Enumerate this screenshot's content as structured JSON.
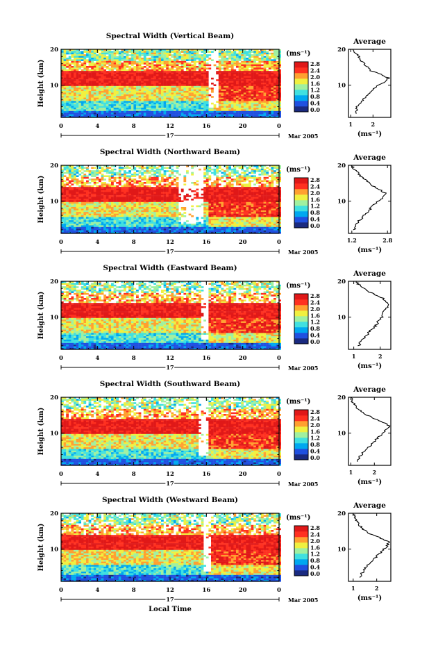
{
  "figure": {
    "xlabel": "Local Time",
    "date_label": "Mar 2005",
    "day_label": "17",
    "ylabel": "Height (km)",
    "unit_label": "(ms⁻¹)",
    "avg_title": "Average",
    "avg_xlabel": "(ms⁻¹)"
  },
  "colorbar": {
    "ticks": [
      "2.8",
      "2.4",
      "2.0",
      "1.6",
      "1.2",
      "0.8",
      "0.4",
      "0.0"
    ],
    "range": [
      0.0,
      3.0
    ],
    "colors": [
      "#1a2a80",
      "#2050e0",
      "#00a8f0",
      "#40e0e0",
      "#a0f0a0",
      "#f0f040",
      "#ffa030",
      "#ff3020",
      "#e01818"
    ]
  },
  "chart_data": [
    {
      "type": "heatmap",
      "title": "Spectral Width (Vertical Beam)",
      "x_ticks": [
        "0",
        "4",
        "8",
        "12",
        "16",
        "20",
        "0"
      ],
      "xlim": [
        0,
        24
      ],
      "y_ticks": [
        "20",
        "10"
      ],
      "ylim": [
        1,
        20
      ],
      "data_gaps_hours": [
        16,
        17.2
      ],
      "average": {
        "type": "line",
        "x_ticks": [
          "1",
          "2"
        ],
        "xlim": [
          0.9,
          2.8
        ],
        "height": [
          2,
          3,
          4,
          5,
          6,
          7,
          8,
          9,
          10,
          11,
          12,
          13,
          14,
          15,
          16,
          17,
          18,
          19,
          20
        ],
        "width": [
          1.3,
          1.25,
          1.3,
          1.45,
          1.55,
          1.7,
          1.85,
          2.05,
          2.25,
          2.55,
          2.7,
          2.35,
          1.9,
          1.75,
          1.6,
          1.45,
          1.35,
          1.2,
          1.1
        ]
      }
    },
    {
      "type": "heatmap",
      "title": "Spectral Width (Northward Beam)",
      "x_ticks": [
        "0",
        "4",
        "8",
        "12",
        "16",
        "20",
        "0"
      ],
      "xlim": [
        0,
        24
      ],
      "y_ticks": [
        "20",
        "10"
      ],
      "ylim": [
        1,
        20
      ],
      "data_gaps_hours": [
        12.8,
        15.5
      ],
      "average": {
        "type": "line",
        "x_ticks": [
          "1.2",
          "2.8"
        ],
        "xlim": [
          1.05,
          2.95
        ],
        "height": [
          2,
          3,
          4,
          5,
          6,
          7,
          8,
          9,
          10,
          11,
          12,
          13,
          14,
          15,
          16,
          17,
          18,
          19,
          20
        ],
        "width": [
          1.3,
          1.35,
          1.45,
          1.6,
          1.75,
          1.9,
          2.05,
          2.2,
          2.4,
          2.6,
          2.75,
          2.5,
          2.2,
          2.0,
          1.8,
          1.6,
          1.45,
          1.3,
          1.2
        ]
      }
    },
    {
      "type": "heatmap",
      "title": "Spectral Width (Eastward Beam)",
      "x_ticks": [
        "0",
        "4",
        "8",
        "12",
        "16",
        "20",
        "0"
      ],
      "xlim": [
        0,
        24
      ],
      "y_ticks": [
        "20",
        "10"
      ],
      "ylim": [
        1,
        20
      ],
      "data_gaps_hours": [
        15.2,
        16.0
      ],
      "average": {
        "type": "line",
        "x_ticks": [
          "1",
          "2"
        ],
        "xlim": [
          0.8,
          2.4
        ],
        "height": [
          2,
          3,
          4,
          5,
          6,
          7,
          8,
          9,
          10,
          11,
          12,
          13,
          14,
          15,
          16,
          17,
          18,
          19,
          20
        ],
        "width": [
          1.2,
          1.25,
          1.35,
          1.5,
          1.6,
          1.75,
          1.85,
          1.95,
          2.05,
          2.1,
          2.2,
          2.3,
          2.25,
          2.15,
          1.9,
          1.6,
          1.4,
          1.2,
          1.1
        ]
      }
    },
    {
      "type": "heatmap",
      "title": "Spectral Width (Southward Beam)",
      "x_ticks": [
        "0",
        "4",
        "8",
        "12",
        "16",
        "20",
        "0"
      ],
      "xlim": [
        0,
        24
      ],
      "y_ticks": [
        "20",
        "10"
      ],
      "ylim": [
        1,
        20
      ],
      "data_gaps_hours": [
        15.0,
        16.0
      ],
      "average": {
        "type": "line",
        "x_ticks": [
          "1",
          "2"
        ],
        "xlim": [
          0.9,
          2.7
        ],
        "height": [
          2,
          3,
          4,
          5,
          6,
          7,
          8,
          9,
          10,
          11,
          12,
          13,
          14,
          15,
          16,
          17,
          18,
          19,
          20
        ],
        "width": [
          1.3,
          1.35,
          1.45,
          1.6,
          1.75,
          1.9,
          2.05,
          2.2,
          2.35,
          2.5,
          2.65,
          2.4,
          2.0,
          1.7,
          1.45,
          1.25,
          1.15,
          1.05,
          1.0
        ]
      }
    },
    {
      "type": "heatmap",
      "title": "Spectral Width (Westward Beam)",
      "x_ticks": [
        "0",
        "4",
        "8",
        "12",
        "16",
        "20",
        "0"
      ],
      "xlim": [
        0,
        24
      ],
      "y_ticks": [
        "20",
        "10"
      ],
      "ylim": [
        1,
        20
      ],
      "data_gaps_hours": [
        15.5,
        16.3
      ],
      "average": {
        "type": "line",
        "x_ticks": [
          "1",
          "2"
        ],
        "xlim": [
          0.8,
          2.6
        ],
        "height": [
          2,
          3,
          4,
          5,
          6,
          7,
          8,
          9,
          10,
          11,
          12,
          13,
          14,
          15,
          16,
          17,
          18,
          19,
          20
        ],
        "width": [
          1.3,
          1.35,
          1.45,
          1.55,
          1.7,
          1.85,
          2.0,
          2.15,
          2.3,
          2.45,
          2.5,
          2.2,
          1.8,
          1.55,
          1.35,
          1.25,
          1.15,
          1.05,
          1.0
        ]
      }
    }
  ]
}
